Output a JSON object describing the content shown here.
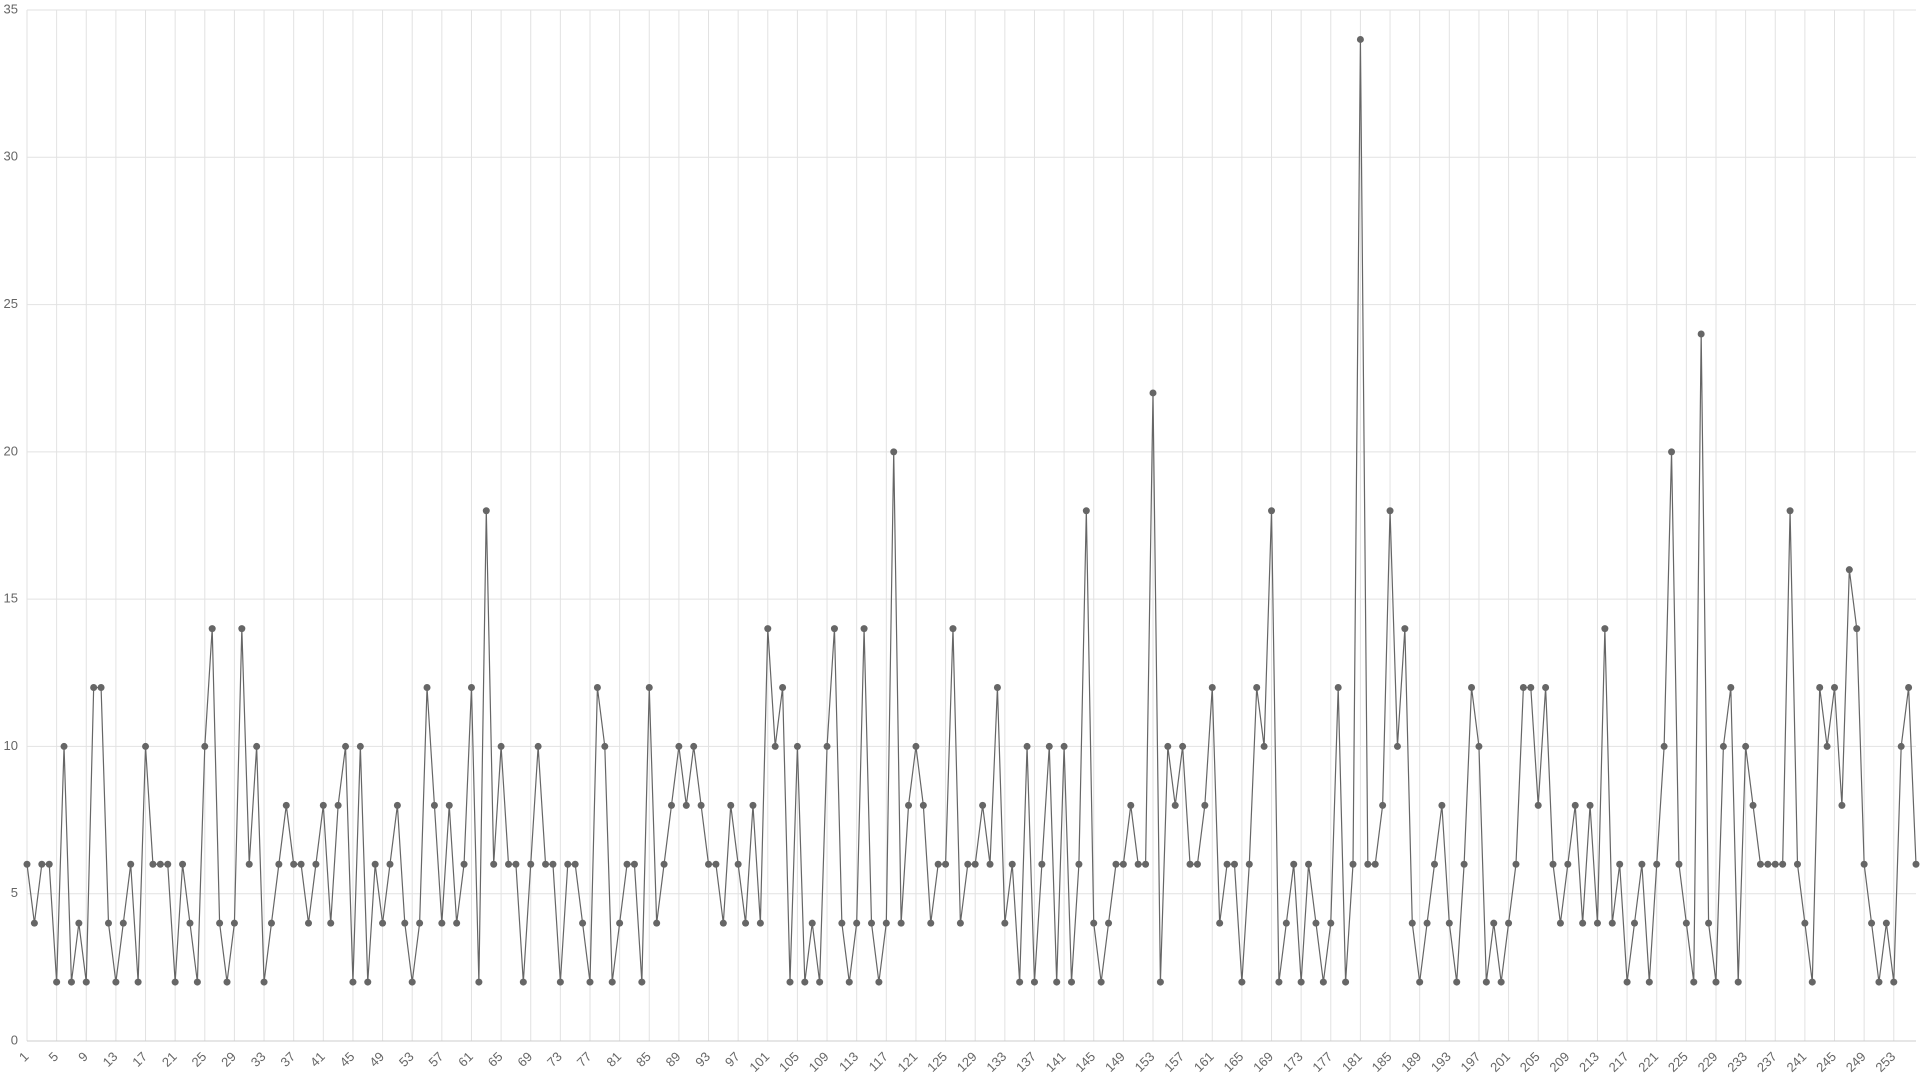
{
  "chart_data": {
    "type": "line",
    "categories": [
      "1",
      null,
      null,
      null,
      "5",
      null,
      null,
      null,
      "9",
      null,
      null,
      null,
      "13",
      null,
      null,
      null,
      "17",
      null,
      null,
      null,
      "21",
      null,
      null,
      null,
      "25",
      null,
      null,
      null,
      "29",
      null,
      null,
      null,
      "33",
      null,
      null,
      null,
      "37",
      null,
      null,
      null,
      "41",
      null,
      null,
      null,
      "45",
      null,
      null,
      null,
      "49",
      null,
      null,
      null,
      "53",
      null,
      null,
      null,
      "57",
      null,
      null,
      null,
      "61",
      null,
      null,
      null,
      "65",
      null,
      null,
      null,
      "69",
      null,
      null,
      null,
      "73",
      null,
      null,
      null,
      "77",
      null,
      null,
      null,
      "81",
      null,
      null,
      null,
      "85",
      null,
      null,
      null,
      "89",
      null,
      null,
      null,
      "93",
      null,
      null,
      null,
      "97",
      null,
      null,
      null,
      "101",
      null,
      null,
      null,
      "105",
      null,
      null,
      null,
      "109",
      null,
      null,
      null,
      "113",
      null,
      null,
      null,
      "117",
      null,
      null,
      null,
      "121",
      null,
      null,
      null,
      "125",
      null,
      null,
      null,
      "129",
      null,
      null,
      null,
      "133",
      null,
      null,
      null,
      "137",
      null,
      null,
      null,
      "141",
      null,
      null,
      null,
      "145",
      null,
      null,
      null,
      "149",
      null,
      null,
      null,
      "153",
      null,
      null,
      null,
      "157",
      null,
      null,
      null,
      "161",
      null,
      null,
      null,
      "165",
      null,
      null,
      null,
      "169",
      null,
      null,
      null,
      "173",
      null,
      null,
      null,
      "177",
      null,
      null,
      null,
      "181",
      null,
      null,
      null,
      "185",
      null,
      null,
      null,
      "189",
      null,
      null,
      null,
      "193",
      null,
      null,
      null,
      "197",
      null,
      null,
      null,
      "201",
      null,
      null,
      null,
      "205",
      null,
      null,
      null,
      "209",
      null,
      null,
      null,
      "213",
      null,
      null,
      null,
      "217",
      null,
      null,
      null,
      "221",
      null,
      null,
      null,
      "225",
      null,
      null,
      null,
      "229",
      null,
      null,
      null,
      "233",
      null,
      null,
      null,
      "237",
      null,
      null,
      null,
      "241",
      null,
      null,
      null,
      "245",
      null,
      null,
      null,
      "249",
      null,
      null,
      null,
      "253",
      null,
      null,
      null
    ],
    "series": [
      {
        "color": "#666666",
        "values": [
          6,
          4,
          6,
          6,
          2,
          10,
          2,
          4,
          2,
          12,
          12,
          4,
          2,
          4,
          6,
          2,
          10,
          6,
          6,
          6,
          2,
          6,
          4,
          2,
          10,
          14,
          4,
          2,
          4,
          14,
          6,
          10,
          2,
          4,
          6,
          8,
          6,
          6,
          4,
          6,
          8,
          4,
          8,
          10,
          2,
          10,
          2,
          6,
          4,
          6,
          8,
          4,
          2,
          4,
          12,
          8,
          4,
          8,
          4,
          6,
          12,
          2,
          18,
          6,
          10,
          6,
          6,
          2,
          6,
          10,
          6,
          6,
          2,
          6,
          6,
          4,
          2,
          12,
          10,
          2,
          4,
          6,
          6,
          2,
          12,
          4,
          6,
          8,
          10,
          8,
          10,
          8,
          6,
          6,
          4,
          8,
          6,
          4,
          8,
          4,
          14,
          10,
          12,
          2,
          10,
          2,
          4,
          2,
          10,
          14,
          4,
          2,
          4,
          14,
          4,
          2,
          4,
          20,
          4,
          8,
          10,
          8,
          4,
          6,
          6,
          14,
          4,
          6,
          6,
          8,
          6,
          12,
          4,
          6,
          2,
          10,
          2,
          6,
          10,
          2,
          10,
          2,
          6,
          18,
          4,
          2,
          4,
          6,
          6,
          8,
          6,
          6,
          22,
          2,
          10,
          8,
          10,
          6,
          6,
          8,
          12,
          4,
          6,
          6,
          2,
          6,
          12,
          10,
          18,
          2,
          4,
          6,
          2,
          6,
          4,
          2,
          4,
          12,
          2,
          6,
          34,
          6,
          6,
          8,
          18,
          10,
          14,
          4,
          2,
          4,
          6,
          8,
          4,
          2,
          6,
          12,
          10,
          2,
          4,
          2,
          4,
          6,
          12,
          12,
          8,
          12,
          6,
          4,
          6,
          8,
          4,
          8,
          4,
          14,
          4,
          6,
          2,
          4,
          6,
          2,
          6,
          10,
          20,
          6,
          4,
          2,
          24,
          4,
          2,
          10,
          12,
          2,
          10,
          8,
          6,
          6,
          6,
          6,
          18,
          6,
          4,
          2,
          12,
          10,
          12,
          8,
          16,
          14,
          6,
          4,
          2,
          4,
          2,
          10,
          12,
          6
        ]
      }
    ],
    "ylim": [
      0,
      35
    ],
    "yticks": [
      0,
      5,
      10,
      15,
      20,
      25,
      30,
      35
    ],
    "grid": true
  }
}
